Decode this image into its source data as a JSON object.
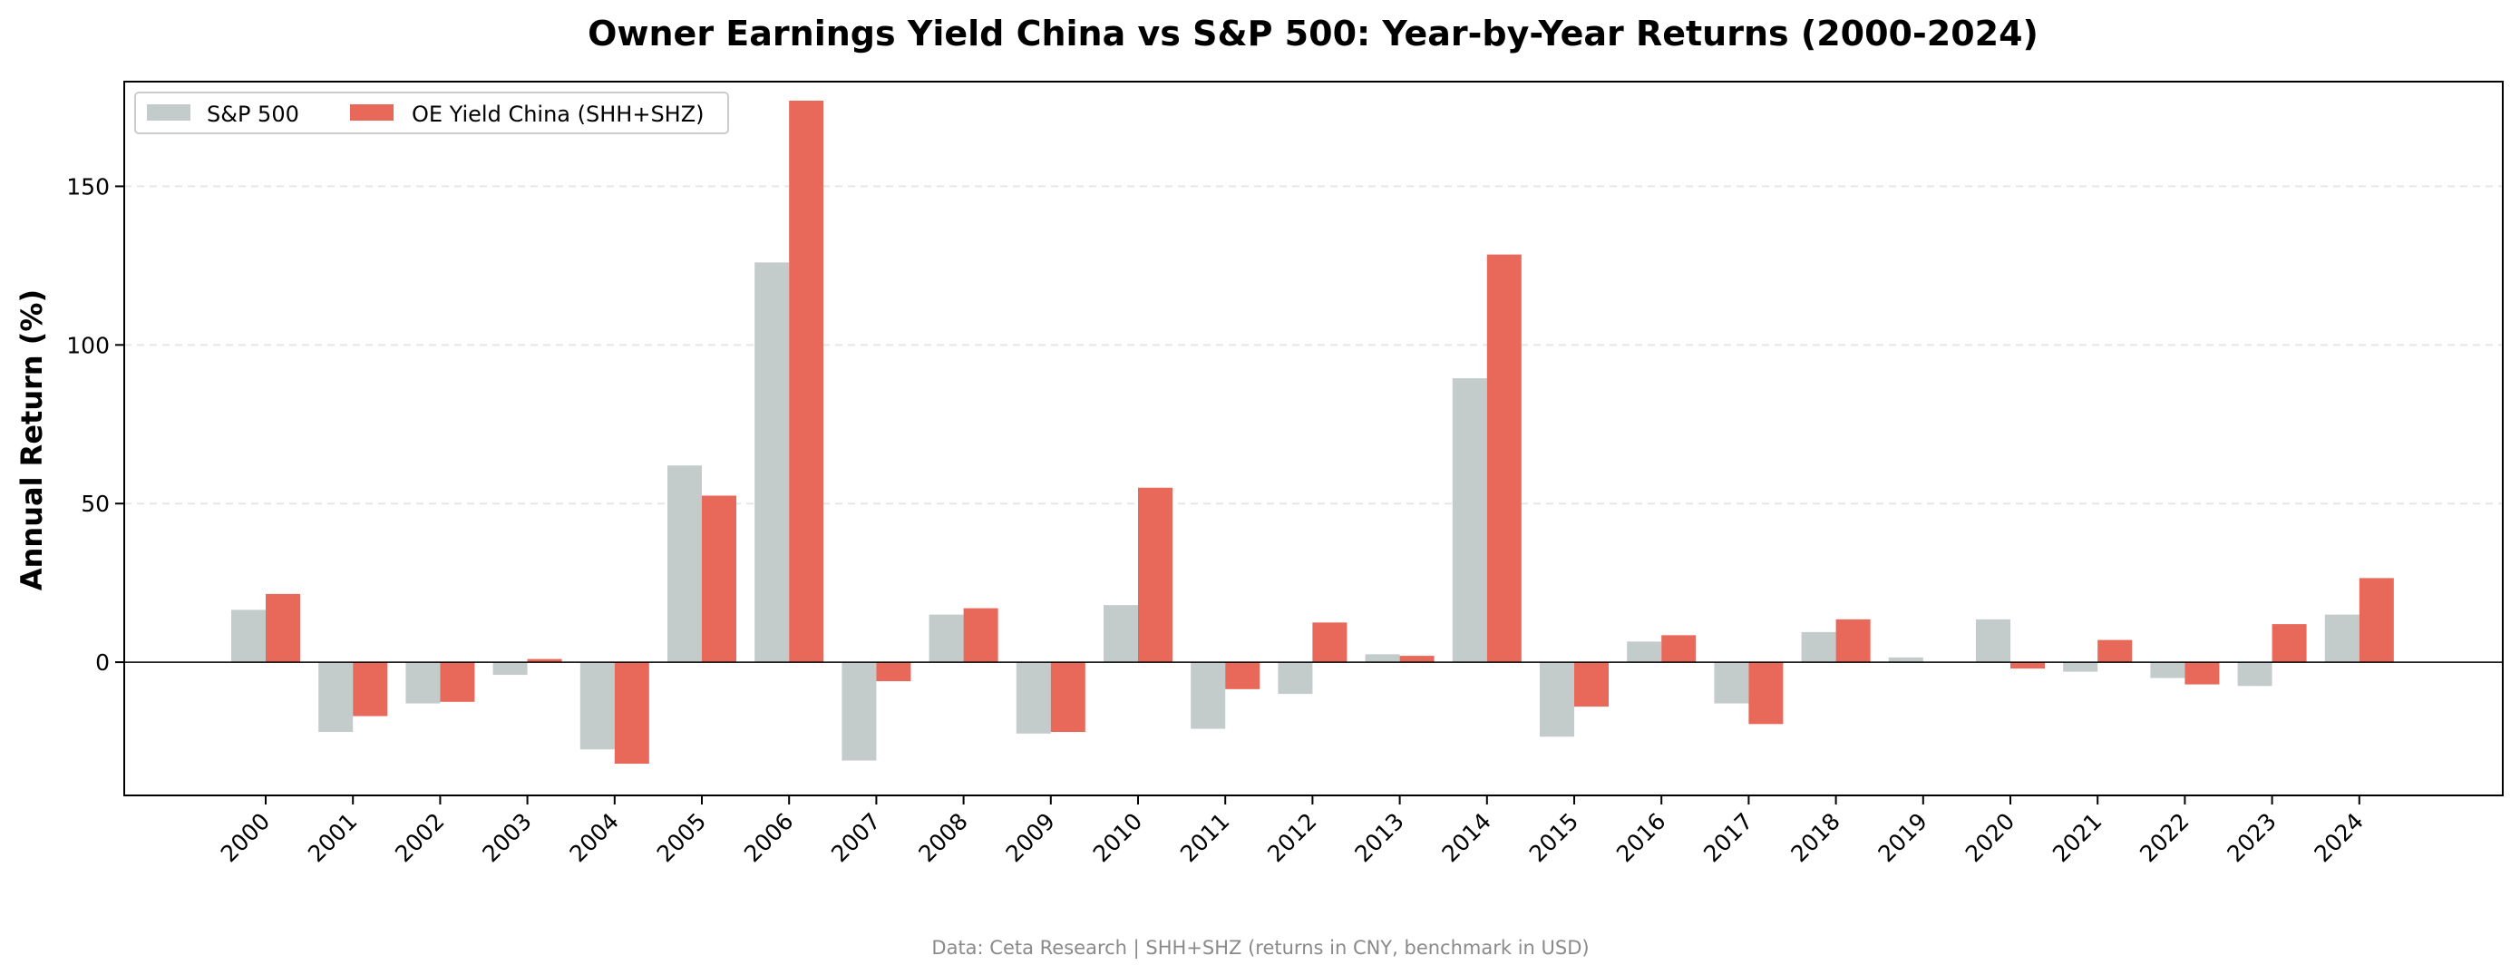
{
  "chart_data": {
    "type": "bar",
    "title": "Owner Earnings Yield China vs S&P 500: Year-by-Year Returns (2000-2024)",
    "xlabel": "",
    "ylabel": "Annual Return (%)",
    "ylim": [
      -42,
      183
    ],
    "yticks": [
      0,
      50,
      100,
      150
    ],
    "grid": true,
    "legend_position": "top-left",
    "categories": [
      "2000",
      "2001",
      "2002",
      "2003",
      "2004",
      "2005",
      "2006",
      "2007",
      "2008",
      "2009",
      "2010",
      "2011",
      "2012",
      "2013",
      "2014",
      "2015",
      "2016",
      "2017",
      "2018",
      "2019",
      "2020",
      "2021",
      "2022",
      "2023",
      "2024"
    ],
    "series": [
      {
        "name": "S&P 500",
        "color": "#c3cbcb",
        "values": [
          16.5,
          -22,
          -13,
          -4,
          -27.5,
          62,
          126,
          -31,
          15,
          -22.5,
          18,
          -21,
          -10,
          2.5,
          89.5,
          -23.5,
          6.5,
          -13,
          9.5,
          1.5,
          13.5,
          -3,
          -5,
          -7.5,
          15
        ]
      },
      {
        "name": "OE Yield China (SHH+SHZ)",
        "color": "#e8685a",
        "values": [
          21.5,
          -17,
          -12.5,
          1,
          -32,
          52.5,
          177,
          -6,
          17,
          -22,
          55,
          -8.5,
          12.5,
          2,
          128.5,
          -14,
          8.5,
          -19.5,
          13.5,
          0,
          -2,
          7,
          -7,
          12,
          26.5
        ]
      }
    ],
    "footnote": "Data: Ceta Research | SHH+SHZ (returns in CNY, benchmark in USD)"
  }
}
